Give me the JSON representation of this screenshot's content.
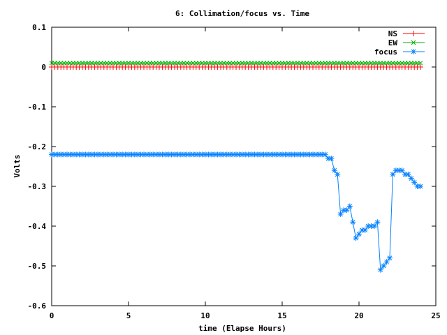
{
  "chart_data": {
    "type": "line",
    "title": "6: Collimation/focus vs. Time",
    "xlabel": "time (Elapse Hours)",
    "ylabel": "Volts",
    "xlim": [
      0,
      25
    ],
    "ylim": [
      -0.6,
      0.1
    ],
    "xticks": [
      0,
      5,
      10,
      15,
      20,
      25
    ],
    "yticks": [
      0.1,
      0,
      -0.1,
      -0.2,
      -0.3,
      -0.4,
      -0.5,
      -0.6
    ],
    "xtick_labels": [
      "0",
      "5",
      "10",
      "15",
      "20",
      "25"
    ],
    "ytick_labels": [
      "0.1",
      "0",
      "-0.1",
      "-0.2",
      "-0.3",
      "-0.4",
      "-0.5",
      "-0.6"
    ],
    "legend_position": "top-right",
    "series": [
      {
        "name": "NS",
        "color": "#ff0000",
        "marker": "plus",
        "x": [
          0,
          0.2,
          0.4,
          0.6,
          0.8,
          1.0,
          1.2,
          1.4,
          1.6,
          1.8,
          2.0,
          2.2,
          2.4,
          2.6,
          2.8,
          3.0,
          3.2,
          3.4,
          3.6,
          3.8,
          4.0,
          4.2,
          4.4,
          4.6,
          4.8,
          5.0,
          5.2,
          5.4,
          5.6,
          5.8,
          6.0,
          6.2,
          6.4,
          6.6,
          6.8,
          7.0,
          7.2,
          7.4,
          7.6,
          7.8,
          8.0,
          8.2,
          8.4,
          8.6,
          8.8,
          9.0,
          9.2,
          9.4,
          9.6,
          9.8,
          10.0,
          10.2,
          10.4,
          10.6,
          10.8,
          11.0,
          11.2,
          11.4,
          11.6,
          11.8,
          12.0,
          12.2,
          12.4,
          12.6,
          12.8,
          13.0,
          13.2,
          13.4,
          13.6,
          13.8,
          14.0,
          14.2,
          14.4,
          14.6,
          14.8,
          15.0,
          15.2,
          15.4,
          15.6,
          15.8,
          16.0,
          16.2,
          16.4,
          16.6,
          16.8,
          17.0,
          17.2,
          17.4,
          17.6,
          17.8,
          18.0,
          18.2,
          18.4,
          18.6,
          18.8,
          19.0,
          19.2,
          19.4,
          19.6,
          19.8,
          20.0,
          20.2,
          20.4,
          20.6,
          20.8,
          21.0,
          21.2,
          21.4,
          21.6,
          21.8,
          22.0,
          22.2,
          22.4,
          22.6,
          22.8,
          23.0,
          23.2,
          23.4,
          23.6,
          23.8,
          24.0
        ],
        "values": [
          0,
          0,
          0,
          0,
          0,
          0,
          0,
          0,
          0,
          0,
          0,
          0,
          0,
          0,
          0,
          0,
          0,
          0,
          0,
          0,
          0,
          0,
          0,
          0,
          0,
          0,
          0,
          0,
          0,
          0,
          0,
          0,
          0,
          0,
          0,
          0,
          0,
          0,
          0,
          0,
          0,
          0,
          0,
          0,
          0,
          0,
          0,
          0,
          0,
          0,
          0,
          0,
          0,
          0,
          0,
          0,
          0,
          0,
          0,
          0,
          0,
          0,
          0,
          0,
          0,
          0,
          0,
          0,
          0,
          0,
          0,
          0,
          0,
          0,
          0,
          0,
          0,
          0,
          0,
          0,
          0,
          0,
          0,
          0,
          0,
          0,
          0,
          0,
          0,
          0,
          0,
          0,
          0,
          0,
          0,
          0,
          0,
          0,
          0,
          0,
          0,
          0,
          0,
          0,
          0,
          0,
          0,
          0,
          0,
          0,
          0,
          0,
          0,
          0,
          0,
          0,
          0,
          0,
          0,
          0,
          0
        ]
      },
      {
        "name": "EW",
        "color": "#00b000",
        "marker": "cross",
        "x": [
          0,
          0.2,
          0.4,
          0.6,
          0.8,
          1.0,
          1.2,
          1.4,
          1.6,
          1.8,
          2.0,
          2.2,
          2.4,
          2.6,
          2.8,
          3.0,
          3.2,
          3.4,
          3.6,
          3.8,
          4.0,
          4.2,
          4.4,
          4.6,
          4.8,
          5.0,
          5.2,
          5.4,
          5.6,
          5.8,
          6.0,
          6.2,
          6.4,
          6.6,
          6.8,
          7.0,
          7.2,
          7.4,
          7.6,
          7.8,
          8.0,
          8.2,
          8.4,
          8.6,
          8.8,
          9.0,
          9.2,
          9.4,
          9.6,
          9.8,
          10.0,
          10.2,
          10.4,
          10.6,
          10.8,
          11.0,
          11.2,
          11.4,
          11.6,
          11.8,
          12.0,
          12.2,
          12.4,
          12.6,
          12.8,
          13.0,
          13.2,
          13.4,
          13.6,
          13.8,
          14.0,
          14.2,
          14.4,
          14.6,
          14.8,
          15.0,
          15.2,
          15.4,
          15.6,
          15.8,
          16.0,
          16.2,
          16.4,
          16.6,
          16.8,
          17.0,
          17.2,
          17.4,
          17.6,
          17.8,
          18.0,
          18.2,
          18.4,
          18.6,
          18.8,
          19.0,
          19.2,
          19.4,
          19.6,
          19.8,
          20.0,
          20.2,
          20.4,
          20.6,
          20.8,
          21.0,
          21.2,
          21.4,
          21.6,
          21.8,
          22.0,
          22.2,
          22.4,
          22.6,
          22.8,
          23.0,
          23.2,
          23.4,
          23.6,
          23.8,
          24.0
        ],
        "values": [
          0.01,
          0.01,
          0.01,
          0.01,
          0.01,
          0.01,
          0.01,
          0.01,
          0.01,
          0.01,
          0.01,
          0.01,
          0.01,
          0.01,
          0.01,
          0.01,
          0.01,
          0.01,
          0.01,
          0.01,
          0.01,
          0.01,
          0.01,
          0.01,
          0.01,
          0.01,
          0.01,
          0.01,
          0.01,
          0.01,
          0.01,
          0.01,
          0.01,
          0.01,
          0.01,
          0.01,
          0.01,
          0.01,
          0.01,
          0.01,
          0.01,
          0.01,
          0.01,
          0.01,
          0.01,
          0.01,
          0.01,
          0.01,
          0.01,
          0.01,
          0.01,
          0.01,
          0.01,
          0.01,
          0.01,
          0.01,
          0.01,
          0.01,
          0.01,
          0.01,
          0.01,
          0.01,
          0.01,
          0.01,
          0.01,
          0.01,
          0.01,
          0.01,
          0.01,
          0.01,
          0.01,
          0.01,
          0.01,
          0.01,
          0.01,
          0.01,
          0.01,
          0.01,
          0.01,
          0.01,
          0.01,
          0.01,
          0.01,
          0.01,
          0.01,
          0.01,
          0.01,
          0.01,
          0.01,
          0.01,
          0.01,
          0.01,
          0.01,
          0.01,
          0.01,
          0.01,
          0.01,
          0.01,
          0.01,
          0.01,
          0.01,
          0.01,
          0.01,
          0.01,
          0.01,
          0.01,
          0.01,
          0.01,
          0.01,
          0.01,
          0.01,
          0.01,
          0.01,
          0.01,
          0.01,
          0.01,
          0.01,
          0.01,
          0.01,
          0.01,
          0.01
        ]
      },
      {
        "name": "focus",
        "color": "#0080ff",
        "marker": "star",
        "x": [
          0,
          0.2,
          0.4,
          0.6,
          0.8,
          1.0,
          1.2,
          1.4,
          1.6,
          1.8,
          2.0,
          2.2,
          2.4,
          2.6,
          2.8,
          3.0,
          3.2,
          3.4,
          3.6,
          3.8,
          4.0,
          4.2,
          4.4,
          4.6,
          4.8,
          5.0,
          5.2,
          5.4,
          5.6,
          5.8,
          6.0,
          6.2,
          6.4,
          6.6,
          6.8,
          7.0,
          7.2,
          7.4,
          7.6,
          7.8,
          8.0,
          8.2,
          8.4,
          8.6,
          8.8,
          9.0,
          9.2,
          9.4,
          9.6,
          9.8,
          10.0,
          10.2,
          10.4,
          10.6,
          10.8,
          11.0,
          11.2,
          11.4,
          11.6,
          11.8,
          12.0,
          12.2,
          12.4,
          12.6,
          12.8,
          13.0,
          13.2,
          13.4,
          13.6,
          13.8,
          14.0,
          14.2,
          14.4,
          14.6,
          14.8,
          15.0,
          15.2,
          15.4,
          15.6,
          15.8,
          16.0,
          16.2,
          16.4,
          16.6,
          16.8,
          17.0,
          17.2,
          17.4,
          17.6,
          17.8,
          18.0,
          18.2,
          18.4,
          18.6,
          18.8,
          19.0,
          19.2,
          19.4,
          19.6,
          19.8,
          20.0,
          20.2,
          20.4,
          20.6,
          20.8,
          21.0,
          21.2,
          21.4,
          21.6,
          21.8,
          22.0,
          22.2,
          22.4,
          22.6,
          22.8,
          23.0,
          23.2,
          23.4,
          23.6,
          23.8,
          24.0
        ],
        "values": [
          -0.22,
          -0.22,
          -0.22,
          -0.22,
          -0.22,
          -0.22,
          -0.22,
          -0.22,
          -0.22,
          -0.22,
          -0.22,
          -0.22,
          -0.22,
          -0.22,
          -0.22,
          -0.22,
          -0.22,
          -0.22,
          -0.22,
          -0.22,
          -0.22,
          -0.22,
          -0.22,
          -0.22,
          -0.22,
          -0.22,
          -0.22,
          -0.22,
          -0.22,
          -0.22,
          -0.22,
          -0.22,
          -0.22,
          -0.22,
          -0.22,
          -0.22,
          -0.22,
          -0.22,
          -0.22,
          -0.22,
          -0.22,
          -0.22,
          -0.22,
          -0.22,
          -0.22,
          -0.22,
          -0.22,
          -0.22,
          -0.22,
          -0.22,
          -0.22,
          -0.22,
          -0.22,
          -0.22,
          -0.22,
          -0.22,
          -0.22,
          -0.22,
          -0.22,
          -0.22,
          -0.22,
          -0.22,
          -0.22,
          -0.22,
          -0.22,
          -0.22,
          -0.22,
          -0.22,
          -0.22,
          -0.22,
          -0.22,
          -0.22,
          -0.22,
          -0.22,
          -0.22,
          -0.22,
          -0.22,
          -0.22,
          -0.22,
          -0.22,
          -0.22,
          -0.22,
          -0.22,
          -0.22,
          -0.22,
          -0.22,
          -0.22,
          -0.22,
          -0.22,
          -0.22,
          -0.23,
          -0.23,
          -0.26,
          -0.27,
          -0.37,
          -0.36,
          -0.36,
          -0.35,
          -0.39,
          -0.43,
          -0.42,
          -0.41,
          -0.41,
          -0.4,
          -0.4,
          -0.4,
          -0.39,
          -0.51,
          -0.5,
          -0.49,
          -0.48,
          -0.27,
          -0.26,
          -0.26,
          -0.26,
          -0.27,
          -0.27,
          -0.28,
          -0.29,
          -0.3,
          -0.3
        ]
      }
    ]
  }
}
